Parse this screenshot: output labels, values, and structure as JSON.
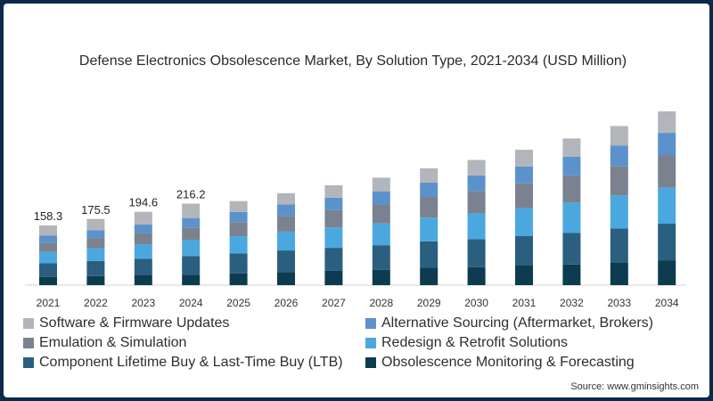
{
  "chart_data": {
    "type": "bar",
    "stacked": true,
    "title": "Defense Electronics Obsolescence Market, By Solution Type, 2021-2034 (USD Million)",
    "categories": [
      "2021",
      "2022",
      "2023",
      "2024",
      "2025",
      "2026",
      "2027",
      "2028",
      "2029",
      "2030",
      "2031",
      "2032",
      "2033",
      "2034"
    ],
    "totals_labels": [
      "158.3",
      "175.5",
      "194.6",
      "216.2"
    ],
    "ylim": [
      0,
      600
    ],
    "grid": false,
    "legend_position": "bottom",
    "series": [
      {
        "name": "Obsolescence Monitoring & Forecasting",
        "color": "#0d3b4f",
        "values": [
          22,
          24,
          26,
          28,
          31,
          35,
          38,
          41,
          46,
          48,
          52,
          55,
          60,
          65
        ]
      },
      {
        "name": "Component Lifetime Buy & Last-Time Buy (LTB)",
        "color": "#2a5f80",
        "values": [
          36,
          40,
          44,
          49,
          53,
          57,
          61,
          65,
          70,
          74,
          78,
          84,
          90,
          98
        ]
      },
      {
        "name": "Redesign & Retrofit Solutions",
        "color": "#4aa8df",
        "values": [
          30,
          34,
          38,
          42,
          46,
          50,
          54,
          58,
          63,
          68,
          74,
          80,
          88,
          96
        ]
      },
      {
        "name": "Emulation & Simulation",
        "color": "#7a8290",
        "values": [
          24,
          27,
          30,
          34,
          37,
          42,
          46,
          50,
          55,
          60,
          66,
          72,
          78,
          86
        ]
      },
      {
        "name": "Alternative Sourcing (Aftermarket, Brokers)",
        "color": "#5b92cc",
        "values": [
          20,
          21,
          23,
          25,
          27,
          30,
          33,
          35,
          38,
          41,
          45,
          50,
          54,
          59
        ]
      },
      {
        "name": "Software & Firmware Updates",
        "color": "#b2b5b9",
        "values": [
          26.3,
          29.5,
          33.6,
          38.2,
          29,
          30,
          33,
          36,
          38,
          41,
          44,
          48,
          52,
          57
        ]
      }
    ]
  },
  "legend_order": [
    "Software & Firmware Updates",
    "Alternative Sourcing (Aftermarket, Brokers)",
    "Emulation & Simulation",
    "Redesign & Retrofit Solutions",
    "Component Lifetime Buy & Last-Time Buy (LTB)",
    "Obsolescence Monitoring & Forecasting"
  ],
  "source": "Source: www.gminsights.com"
}
